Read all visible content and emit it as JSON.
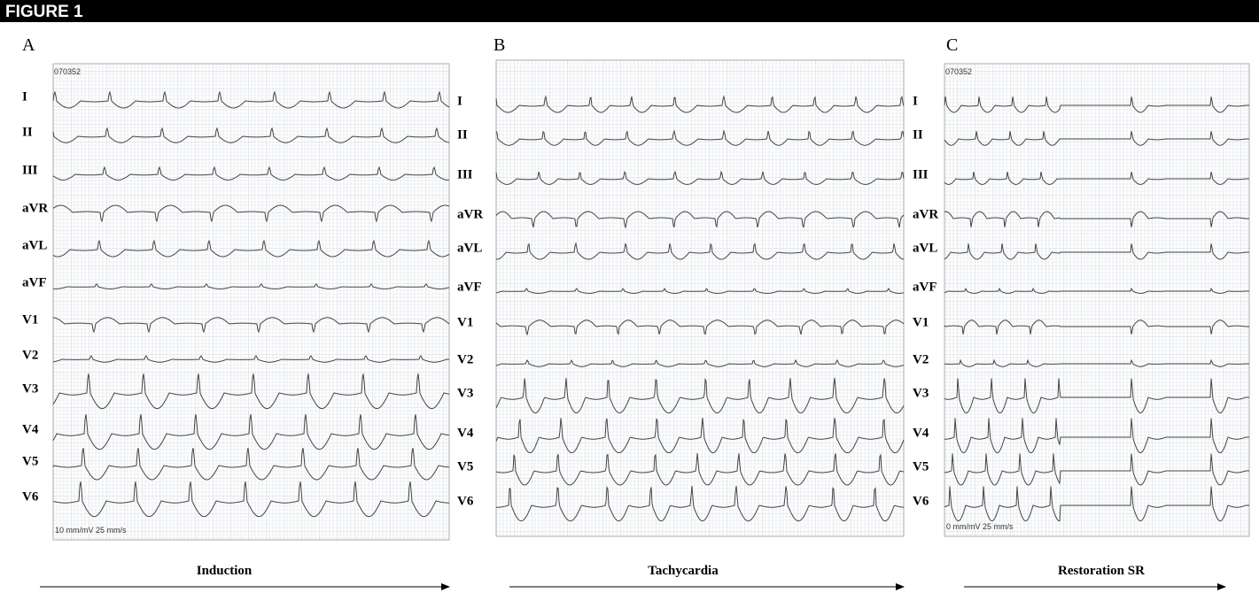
{
  "header": {
    "title": "FIGURE 1"
  },
  "panels": [
    {
      "label": "A",
      "id_text": "070352",
      "leads": [
        "I",
        "II",
        "III",
        "aVR",
        "aVL",
        "aVF",
        "V1",
        "V2",
        "V3",
        "V4",
        "V5",
        "V6"
      ],
      "footer": "10 mm/mV   25 mm/s",
      "caption": "Induction"
    },
    {
      "label": "B",
      "leads": [
        "I",
        "II",
        "III",
        "aVR",
        "aVL",
        "aVF",
        "V1",
        "V2",
        "V3",
        "V4",
        "V5",
        "V6"
      ],
      "caption": "Tachycardia"
    },
    {
      "label": "C",
      "id_text": "070352",
      "leads": [
        "I",
        "II",
        "III",
        "aVR",
        "aVL",
        "aVF",
        "V1",
        "V2",
        "V3",
        "V4",
        "V5",
        "V6"
      ],
      "footer": "0 mm/mV   25 mm/s",
      "caption": "Restoration SR"
    }
  ]
}
